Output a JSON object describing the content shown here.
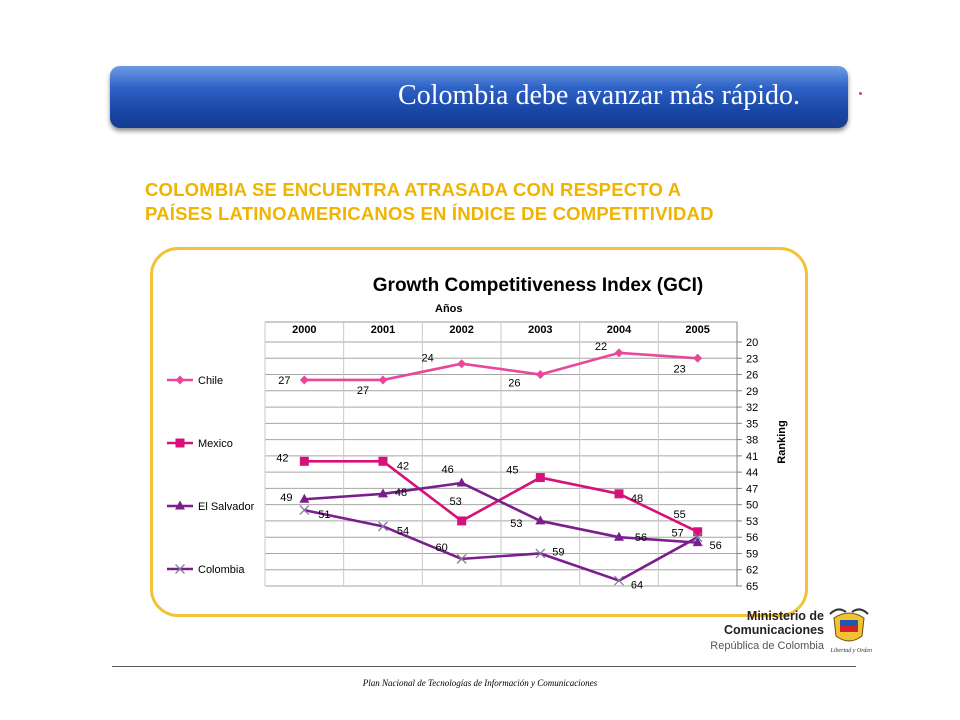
{
  "banner": {
    "title": "Colombia debe avanzar más rápido."
  },
  "subtitle": {
    "line1": "COLOMBIA SE ENCUENTRA ATRASADA CON  RESPECTO A",
    "line2": "PAÍSES LATINOAMERICANOS EN ÍNDICE DE COMPETITIVIDAD"
  },
  "footer": {
    "text": "Plan Nacional de Tecnologías de Información y Comunicaciones"
  },
  "logo": {
    "line1": "Ministerio de",
    "line2": "Comunicaciones",
    "line3": "República de Colombia",
    "motto": "Libertad y Orden"
  },
  "chart_data": {
    "type": "line",
    "title": "Growth Competitiveness Index (GCI)",
    "xlabel": "Años",
    "ylabel": "Ranking",
    "categories": [
      "2000",
      "2001",
      "2002",
      "2003",
      "2004",
      "2005"
    ],
    "y_ticks": [
      20,
      23,
      26,
      29,
      32,
      35,
      38,
      41,
      44,
      47,
      50,
      53,
      56,
      59,
      62,
      65
    ],
    "ylim": [
      20,
      65
    ],
    "y_inverted": true,
    "y_axis_position": "right",
    "x_axis_position": "top",
    "legend_position": "left",
    "grid": true,
    "series": [
      {
        "name": "Chile",
        "values": [
          27,
          27,
          24,
          26,
          22,
          23
        ],
        "color": "#e8479b",
        "marker": "diamond"
      },
      {
        "name": "Mexico",
        "values": [
          42,
          42,
          53,
          45,
          48,
          55
        ],
        "color": "#d6127a",
        "marker": "square"
      },
      {
        "name": "El Salvador",
        "values": [
          49,
          48,
          46,
          53,
          56,
          57
        ],
        "color": "#7a1e8c",
        "marker": "triangle"
      },
      {
        "name": "Colombia",
        "values": [
          51,
          54,
          60,
          59,
          64,
          56
        ],
        "color": "#7a1e8c",
        "marker": "x"
      }
    ],
    "data_labels": [
      {
        "series": "Chile",
        "values": [
          "27",
          "27",
          "24",
          "26",
          "22",
          "23"
        ]
      },
      {
        "series": "Mexico",
        "values": [
          "42",
          "42",
          "53",
          "45",
          "48",
          "55"
        ]
      },
      {
        "series": "El Salvador",
        "values": [
          "49",
          "48",
          "46",
          "53",
          "56",
          "57"
        ]
      },
      {
        "series": "Colombia",
        "values": [
          "51",
          "54",
          "60",
          "59",
          "64",
          "56"
        ]
      }
    ]
  }
}
